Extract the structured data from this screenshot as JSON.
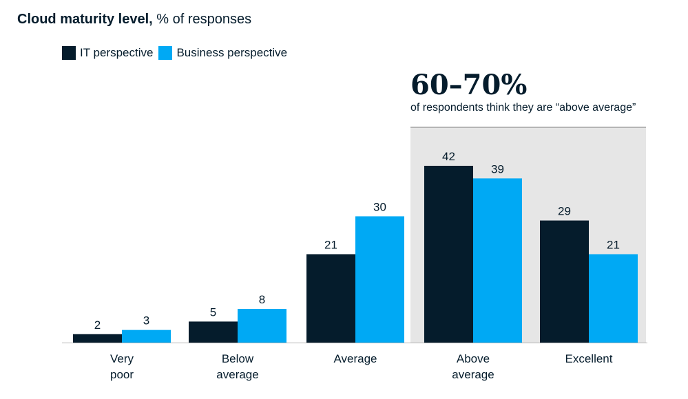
{
  "title": {
    "bold": "Cloud maturity level,",
    "light": "% of responses"
  },
  "legend": [
    {
      "label": "IT perspective",
      "color": "#051c2c"
    },
    {
      "label": "Business perspective",
      "color": "#00a9f4"
    }
  ],
  "callout": {
    "headline": "60–70%",
    "text": "of respondents think they are “above average”",
    "highlight_color": "#e6e6e6"
  },
  "chart_data": {
    "type": "bar",
    "categories": [
      [
        "Very",
        "poor"
      ],
      [
        "Below",
        "average"
      ],
      [
        "Average"
      ],
      [
        "Above",
        "average"
      ],
      [
        "Excellent"
      ]
    ],
    "series": [
      {
        "name": "IT perspective",
        "values": [
          2,
          5,
          21,
          42,
          29
        ],
        "color": "#051c2c"
      },
      {
        "name": "Business perspective",
        "values": [
          3,
          8,
          30,
          39,
          21
        ],
        "color": "#00a9f4"
      }
    ],
    "ylim": [
      0,
      42
    ],
    "highlighted_categories": [
      3,
      4
    ],
    "grid": false
  }
}
